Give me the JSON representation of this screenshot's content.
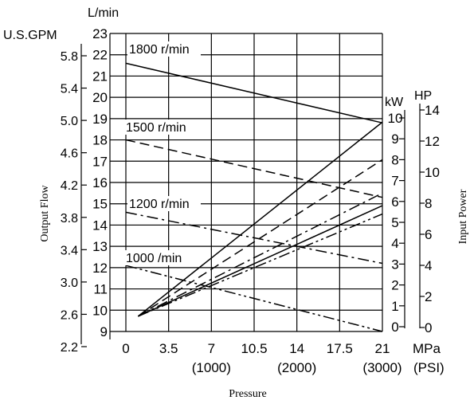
{
  "chart_data": {
    "type": "line",
    "xlabel": "Pressure",
    "x_unit": "MPa",
    "x_unit_alt": "(PSI)",
    "x_ticks": [
      "0",
      "3.5",
      "7",
      "10.5",
      "14",
      "17.5",
      "21"
    ],
    "x_ticks_alt": [
      "(1000)",
      "(2000)",
      "(3000)"
    ],
    "xlim": [
      0,
      21
    ],
    "ylabel_left": "Output Flow",
    "y_unit": "L/min",
    "y_ticks": [
      "9",
      "10",
      "11",
      "12",
      "13",
      "14",
      "15",
      "16",
      "17",
      "18",
      "19",
      "20",
      "21",
      "22",
      "23"
    ],
    "ylim": [
      9,
      23
    ],
    "y_unit_alt": "U.S.GPM",
    "y_ticks_alt": [
      "2.2",
      "2.6",
      "3.0",
      "3.4",
      "3.8",
      "4.2",
      "4.6",
      "5.0",
      "5.4",
      "5.8"
    ],
    "ylabel_right": "Input Power",
    "kw_unit": "kW",
    "kw_ticks": [
      "0",
      "1",
      "2",
      "3",
      "4",
      "5",
      "6",
      "7",
      "8",
      "9",
      "10"
    ],
    "kw_lim": [
      0,
      10
    ],
    "hp_unit": "HP",
    "hp_ticks": [
      "0",
      "2",
      "4",
      "6",
      "8",
      "10",
      "12",
      "14"
    ],
    "hp_lim": [
      0,
      14
    ],
    "grid": true,
    "flow_series": [
      {
        "name": "1800 r/min",
        "style": "solid",
        "x": [
          0,
          21
        ],
        "y": [
          21.6,
          18.8
        ]
      },
      {
        "name": "1500 r/min",
        "style": "dash",
        "x": [
          0,
          21
        ],
        "y": [
          18.0,
          15.3
        ]
      },
      {
        "name": "1200 r/min",
        "style": "dashdot",
        "x": [
          0,
          21
        ],
        "y": [
          14.6,
          12.2
        ]
      },
      {
        "name": "1000 /min",
        "style": "dashdotdot",
        "x": [
          0,
          21
        ],
        "y": [
          12.1,
          9.0
        ]
      }
    ],
    "power_series": [
      {
        "style": "solid",
        "x": [
          1.0,
          21
        ],
        "kw": [
          0.5,
          9.8
        ]
      },
      {
        "style": "dash",
        "x": [
          1.0,
          21
        ],
        "kw": [
          0.5,
          8.0
        ]
      },
      {
        "style": "dashdot",
        "x": [
          1.0,
          21
        ],
        "kw": [
          0.5,
          6.4
        ]
      },
      {
        "style": "dashdotdot",
        "x": [
          1.0,
          21
        ],
        "kw": [
          0.5,
          5.4
        ]
      }
    ],
    "power_limit_line": {
      "x": [
        1.0,
        21
      ],
      "kw": [
        0.5,
        5.8
      ]
    }
  }
}
